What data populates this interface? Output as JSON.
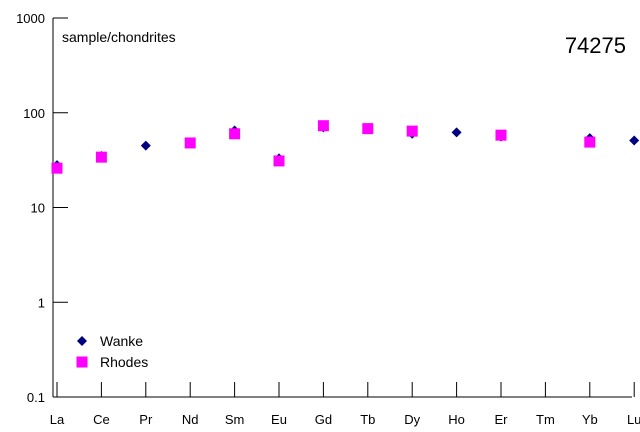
{
  "chart_data": {
    "type": "scatter",
    "title": "74275",
    "annotation": "sample/chondrites",
    "xlabel": "",
    "ylabel": "",
    "y_scale": "log",
    "ylim": [
      0.1,
      1000
    ],
    "y_ticks": [
      {
        "value": 0.1,
        "label": "0.1"
      },
      {
        "value": 1,
        "label": "1"
      },
      {
        "value": 10,
        "label": "10"
      },
      {
        "value": 100,
        "label": "100"
      },
      {
        "value": 1000,
        "label": "1000"
      }
    ],
    "categories": [
      "La",
      "Ce",
      "Pr",
      "Nd",
      "Sm",
      "Eu",
      "Gd",
      "Tb",
      "Dy",
      "Ho",
      "Er",
      "Tm",
      "Yb",
      "Lu"
    ],
    "grid": false,
    "legend_position": "bottom-left",
    "series": [
      {
        "name": "Wanke",
        "marker": "diamond",
        "color": "#000080",
        "values": [
          28,
          35,
          45,
          null,
          65,
          33,
          70,
          67,
          60,
          62,
          56,
          null,
          54,
          51
        ]
      },
      {
        "name": "Rhodes",
        "marker": "square",
        "color": "#ff00ff",
        "values": [
          26,
          34,
          null,
          48,
          60,
          31,
          73,
          68,
          64,
          null,
          58,
          null,
          49,
          null
        ]
      }
    ]
  }
}
